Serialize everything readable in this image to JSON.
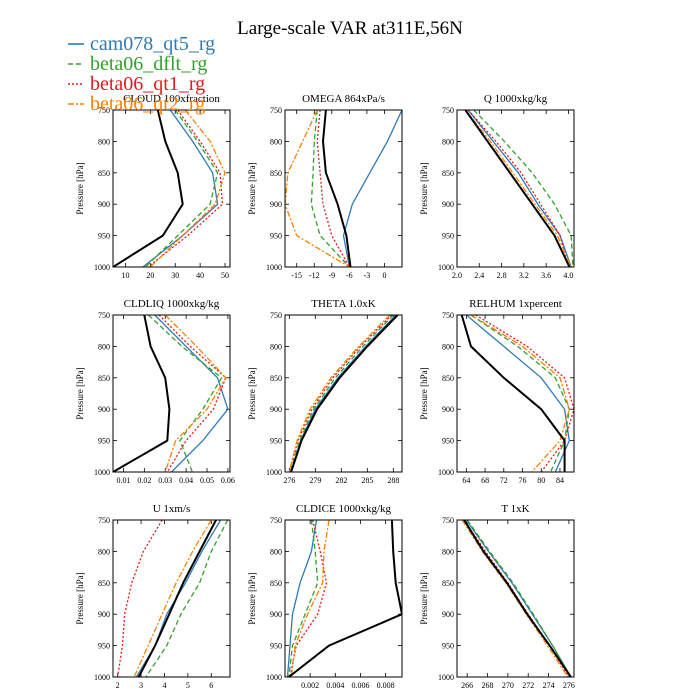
{
  "figure": {
    "title": "Large-scale VAR at311E,56N"
  },
  "legend": [
    {
      "name": "cam078_qt5_rg",
      "color": "#2f7ab5",
      "dash": "solid"
    },
    {
      "name": "beta06_dflt_rg",
      "color": "#33a02c",
      "dash": "dash"
    },
    {
      "name": "beta06_qt1_rg",
      "color": "#e31a1c",
      "dash": "dot"
    },
    {
      "name": "beta06_qt2_rg",
      "color": "#ff7f00",
      "dash": "dashdot"
    }
  ],
  "colors": {
    "control": "#000000"
  },
  "chart_data": [
    {
      "type": "line",
      "title": "CLOUD 100xfraction",
      "ylabel": "Pressure [hPa]",
      "xlim": [
        5,
        52
      ],
      "ylim": [
        1000,
        750
      ],
      "xticks": [
        10,
        20,
        30,
        40,
        50
      ],
      "yticks": [
        750,
        800,
        850,
        900,
        950,
        1000
      ],
      "y": [
        750,
        800,
        850,
        900,
        950,
        1000
      ],
      "series": [
        {
          "name": "control",
          "values": [
            23,
            26,
            31,
            33,
            25,
            5
          ]
        },
        {
          "name": "cam078_qt5_rg",
          "values": [
            28,
            37,
            45,
            47,
            33,
            17
          ]
        },
        {
          "name": "beta06_dflt_rg",
          "values": [
            30,
            39,
            47,
            44,
            31,
            18
          ]
        },
        {
          "name": "beta06_qt1_rg",
          "values": [
            31,
            40,
            48,
            49,
            35,
            19
          ]
        },
        {
          "name": "beta06_qt2_rg",
          "values": [
            34,
            44,
            50,
            46,
            33,
            20
          ]
        }
      ]
    },
    {
      "type": "line",
      "title": "OMEGA 864xPa/s",
      "ylabel": "Pressure [hPa]",
      "xlim": [
        -17,
        3
      ],
      "ylim": [
        1000,
        750
      ],
      "xticks": [
        -15,
        -12,
        -9,
        -6,
        -3,
        0
      ],
      "yticks": [
        750,
        800,
        850,
        900,
        950,
        1000
      ],
      "y": [
        750,
        800,
        850,
        900,
        950,
        1000
      ],
      "series": [
        {
          "name": "control",
          "values": [
            -10,
            -10.5,
            -10,
            -8,
            -6.5,
            -5.8
          ]
        },
        {
          "name": "cam078_qt5_rg",
          "values": [
            3,
            0.5,
            -2.5,
            -5.5,
            -7,
            -6
          ]
        },
        {
          "name": "beta06_dflt_rg",
          "values": [
            -11.5,
            -12,
            -12.2,
            -12.5,
            -11,
            -6
          ]
        },
        {
          "name": "beta06_qt1_rg",
          "values": [
            -11,
            -11.5,
            -11,
            -10.5,
            -9,
            -6
          ]
        },
        {
          "name": "beta06_qt2_rg",
          "values": [
            -11.5,
            -14,
            -16.5,
            -17,
            -15,
            -6
          ]
        }
      ]
    },
    {
      "type": "line",
      "title": "Q 1000xkg/kg",
      "ylabel": "Pressure [hPa]",
      "xlim": [
        2.0,
        4.1
      ],
      "ylim": [
        1000,
        750
      ],
      "xticks": [
        2.0,
        2.4,
        2.8,
        3.2,
        3.6,
        4.0
      ],
      "yticks": [
        750,
        800,
        850,
        900,
        950,
        1000
      ],
      "y": [
        750,
        800,
        850,
        900,
        950,
        1000
      ],
      "series": [
        {
          "name": "control",
          "values": [
            2.15,
            2.55,
            2.95,
            3.35,
            3.75,
            4.02
          ]
        },
        {
          "name": "cam078_qt5_rg",
          "values": [
            2.2,
            2.65,
            3.1,
            3.45,
            3.85,
            4.05
          ]
        },
        {
          "name": "beta06_dflt_rg",
          "values": [
            2.3,
            2.85,
            3.35,
            3.75,
            4.05,
            4.08
          ]
        },
        {
          "name": "beta06_qt1_rg",
          "values": [
            2.2,
            2.7,
            3.15,
            3.5,
            3.85,
            4.0
          ]
        },
        {
          "name": "beta06_qt2_rg",
          "values": [
            2.15,
            2.6,
            3.0,
            3.4,
            3.8,
            4.05
          ]
        }
      ]
    },
    {
      "type": "line",
      "title": "CLDLIQ 1000xkg/kg",
      "ylabel": "Pressure [hPa]",
      "xlim": [
        0.005,
        0.061
      ],
      "ylim": [
        1000,
        750
      ],
      "xticks": [
        0.01,
        0.02,
        0.03,
        0.04,
        0.05,
        0.06
      ],
      "yticks": [
        750,
        800,
        850,
        900,
        950,
        1000
      ],
      "y": [
        750,
        800,
        850,
        900,
        950,
        1000
      ],
      "series": [
        {
          "name": "control",
          "values": [
            0.02,
            0.023,
            0.03,
            0.032,
            0.031,
            0.005
          ]
        },
        {
          "name": "cam078_qt5_rg",
          "values": [
            0.025,
            0.04,
            0.055,
            0.06,
            0.048,
            0.033
          ]
        },
        {
          "name": "beta06_dflt_rg",
          "values": [
            0.022,
            0.038,
            0.057,
            0.048,
            0.037,
            0.043
          ]
        },
        {
          "name": "beta06_qt1_rg",
          "values": [
            0.027,
            0.042,
            0.059,
            0.053,
            0.04,
            0.031
          ]
        },
        {
          "name": "beta06_qt2_rg",
          "values": [
            0.03,
            0.045,
            0.059,
            0.05,
            0.035,
            0.03
          ]
        }
      ]
    },
    {
      "type": "line",
      "title": "THETA 1.0xK",
      "ylabel": "Pressure [hPa]",
      "xlim": [
        275.5,
        289
      ],
      "ylim": [
        1000,
        750
      ],
      "xticks": [
        276,
        279,
        282,
        285,
        288
      ],
      "yticks": [
        750,
        800,
        850,
        900,
        950,
        1000
      ],
      "y": [
        750,
        800,
        850,
        900,
        950,
        1000
      ],
      "series": [
        {
          "name": "control",
          "values": [
            288.5,
            285.0,
            281.8,
            279.2,
            277.4,
            276.2
          ]
        },
        {
          "name": "cam078_qt5_rg",
          "values": [
            288.3,
            284.8,
            281.6,
            279.0,
            277.3,
            276.2
          ]
        },
        {
          "name": "beta06_dflt_rg",
          "values": [
            288.0,
            284.5,
            281.3,
            278.8,
            277.2,
            276.1
          ]
        },
        {
          "name": "beta06_qt1_rg",
          "values": [
            287.8,
            284.2,
            281.0,
            278.6,
            277.0,
            276.0
          ]
        },
        {
          "name": "beta06_qt2_rg",
          "values": [
            287.6,
            284.0,
            280.8,
            278.4,
            276.9,
            276.0
          ]
        }
      ]
    },
    {
      "type": "line",
      "title": "RELHUM 1xpercent",
      "ylabel": "Pressure [hPa]",
      "xlim": [
        62,
        87
      ],
      "ylim": [
        1000,
        750
      ],
      "xticks": [
        64.0,
        68.0,
        72.0,
        76.0,
        80.0,
        84.0
      ],
      "yticks": [
        750,
        800,
        850,
        900,
        950,
        1000
      ],
      "y": [
        750,
        800,
        850,
        900,
        950,
        1000
      ],
      "series": [
        {
          "name": "control",
          "values": [
            63,
            65,
            72,
            80,
            85,
            85
          ]
        },
        {
          "name": "cam078_qt5_rg",
          "values": [
            64,
            72,
            80,
            85,
            86,
            83
          ]
        },
        {
          "name": "beta06_dflt_rg",
          "values": [
            65,
            75,
            83,
            86,
            85,
            82
          ]
        },
        {
          "name": "beta06_qt1_rg",
          "values": [
            66,
            77,
            85,
            87,
            85,
            80
          ]
        },
        {
          "name": "beta06_qt2_rg",
          "values": [
            65,
            76,
            84,
            86,
            84,
            78
          ]
        }
      ]
    },
    {
      "type": "line",
      "title": "U 1xm/s",
      "ylabel": "Pressure [hPa]",
      "xlim": [
        1.8,
        6.8
      ],
      "ylim": [
        1000,
        750
      ],
      "xticks": [
        2.0,
        3.0,
        4.0,
        5.0,
        6.0
      ],
      "yticks": [
        750,
        800,
        850,
        900,
        950,
        1000
      ],
      "y": [
        750,
        800,
        850,
        900,
        950,
        1000
      ],
      "series": [
        {
          "name": "control",
          "values": [
            6.2,
            5.5,
            4.8,
            4.2,
            3.6,
            2.9
          ]
        },
        {
          "name": "cam078_qt5_rg",
          "values": [
            6.4,
            5.6,
            4.9,
            4.1,
            3.6,
            2.8
          ]
        },
        {
          "name": "beta06_dflt_rg",
          "values": [
            6.7,
            6.0,
            5.5,
            4.7,
            4.1,
            3.2
          ]
        },
        {
          "name": "beta06_qt1_rg",
          "values": [
            3.9,
            3.1,
            2.6,
            2.3,
            2.2,
            2.0
          ]
        },
        {
          "name": "beta06_qt2_rg",
          "values": [
            6.0,
            5.2,
            4.5,
            3.9,
            3.3,
            2.7
          ]
        }
      ]
    },
    {
      "type": "line",
      "title": "CLDICE 1000xkg/kg",
      "ylabel": "Pressure [hPa]",
      "xlim": [
        0,
        0.0093
      ],
      "ylim": [
        1000,
        750
      ],
      "xticks": [
        0.002,
        0.004,
        0.006,
        0.008
      ],
      "yticks": [
        750,
        800,
        850,
        900,
        950,
        1000
      ],
      "y": [
        750,
        800,
        850,
        900,
        950,
        1000
      ],
      "series": [
        {
          "name": "control",
          "values": [
            0.0085,
            0.0086,
            0.0088,
            0.0093,
            0.0035,
            0.0003
          ]
        },
        {
          "name": "cam078_qt5_rg",
          "values": [
            0.0025,
            0.0021,
            0.0012,
            0.0006,
            0.0004,
            0.0002
          ]
        },
        {
          "name": "beta06_dflt_rg",
          "values": [
            0.0021,
            0.0024,
            0.0026,
            0.0016,
            0.0006,
            0.0003
          ]
        },
        {
          "name": "beta06_qt1_rg",
          "values": [
            0.0022,
            0.0028,
            0.0033,
            0.0026,
            0.0009,
            0.0004
          ]
        },
        {
          "name": "beta06_qt2_rg",
          "values": [
            0.0035,
            0.0031,
            0.003,
            0.0018,
            0.0008,
            0.0005
          ]
        }
      ]
    },
    {
      "type": "line",
      "title": "T 1xK",
      "ylabel": "Pressure [hPa]",
      "xlim": [
        265,
        276.5
      ],
      "ylim": [
        1000,
        750
      ],
      "xticks": [
        266.0,
        268.0,
        270.0,
        272.0,
        274.0,
        276.0
      ],
      "yticks": [
        750,
        800,
        850,
        900,
        950,
        1000
      ],
      "y": [
        750,
        800,
        850,
        900,
        950,
        1000
      ],
      "series": [
        {
          "name": "control",
          "values": [
            265.7,
            267.6,
            269.9,
            271.9,
            274.1,
            276.2
          ]
        },
        {
          "name": "cam078_qt5_rg",
          "values": [
            265.9,
            268.1,
            270.4,
            272.4,
            274.4,
            276.2
          ]
        },
        {
          "name": "beta06_dflt_rg",
          "values": [
            266.0,
            268.2,
            270.5,
            272.5,
            274.4,
            276.2
          ]
        },
        {
          "name": "beta06_qt1_rg",
          "values": [
            265.7,
            267.8,
            270.0,
            272.0,
            274.1,
            276.0
          ]
        },
        {
          "name": "beta06_qt2_rg",
          "values": [
            265.5,
            267.5,
            269.8,
            271.8,
            273.9,
            275.9
          ]
        }
      ]
    }
  ]
}
